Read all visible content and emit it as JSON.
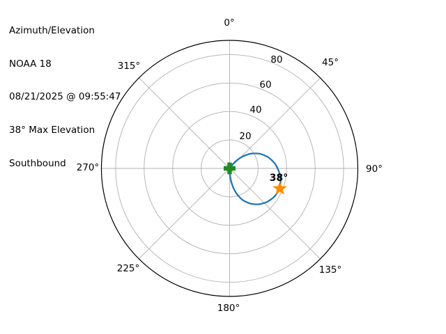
{
  "header": {
    "lines": [
      "Azimuth/Elevation",
      "NOAA 18",
      "08/21/2025 @ 09:55:47",
      "38° Max Elevation",
      "Southbound"
    ]
  },
  "chart_data": {
    "type": "line",
    "projection": "polar",
    "title": "Azimuth/Elevation",
    "satellite": "NOAA 18",
    "timestamp": "08/21/2025 @ 09:55:47",
    "max_elevation_deg": 38,
    "direction": "Southbound",
    "angular_axis": {
      "unit": "azimuth_degrees",
      "zero_location": "N",
      "rotation": "clockwise",
      "ticks": [
        0,
        45,
        90,
        135,
        180,
        225,
        270,
        315
      ],
      "tick_labels": [
        "0°",
        "45°",
        "90°",
        "135°",
        "180°",
        "225°",
        "270°",
        "315°"
      ]
    },
    "radial_axis": {
      "unit": "elevation_degrees",
      "min": 0,
      "max": 90,
      "rings": [
        20,
        40,
        60,
        80
      ],
      "ring_labels": [
        "20",
        "40",
        "60",
        "80"
      ],
      "grid": true
    },
    "track": {
      "name": "satellite-pass-track",
      "color": "#1f77b4",
      "points_az_el": [
        [
          35,
          0
        ],
        [
          40,
          6
        ],
        [
          47,
          12
        ],
        [
          55,
          18
        ],
        [
          64,
          23.5
        ],
        [
          74,
          28.3
        ],
        [
          85,
          32.3
        ],
        [
          96,
          35.3
        ],
        [
          105,
          37
        ],
        [
          112,
          38
        ],
        [
          122,
          37.2
        ],
        [
          132,
          35.3
        ],
        [
          141,
          32.5
        ],
        [
          149,
          29
        ],
        [
          157,
          24.5
        ],
        [
          164,
          19
        ],
        [
          170,
          13
        ],
        [
          175,
          7
        ],
        [
          179,
          0
        ]
      ]
    },
    "markers": [
      {
        "name": "observer-marker",
        "shape": "plus",
        "color": "#228b22",
        "az": 0,
        "el": 0
      },
      {
        "name": "max-elevation-marker",
        "shape": "star",
        "color": "#ff8c00",
        "az": 112,
        "el": 38,
        "label": "38°"
      }
    ],
    "colors": {
      "grid": "#b0b0b0",
      "outline": "#000000",
      "background": "#ffffff",
      "text": "#000000"
    }
  }
}
